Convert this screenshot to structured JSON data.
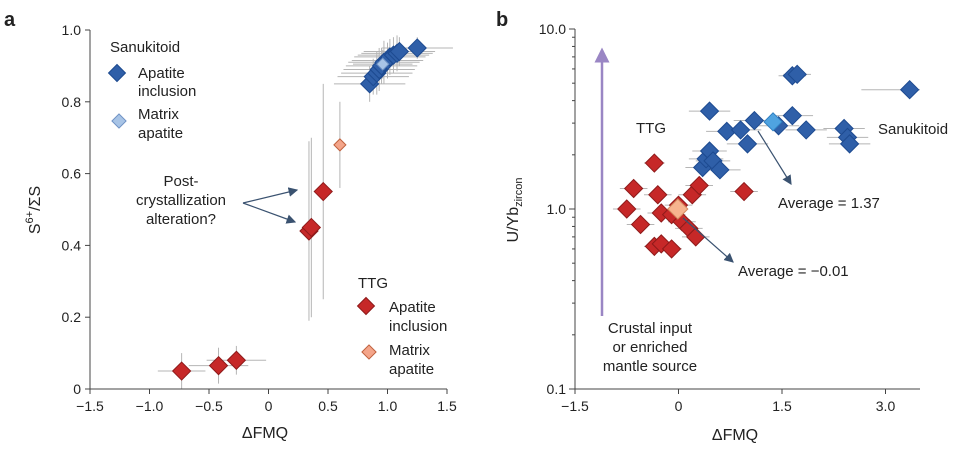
{
  "colors": {
    "sanukitoid_inclusion": "#2f5fa8",
    "sanukitoid_matrix": "#a8c4e6",
    "ttg_inclusion": "#c62828",
    "ttg_matrix": "#f4a58a",
    "arrow": "#3a5270",
    "crustal_arrow": "#9a86c4",
    "avg_sanukitoid": "#4fa3e0",
    "avg_ttg": "#f7b48f"
  },
  "panel_a": {
    "letter": "a",
    "legend": {
      "sanukitoid_title": "Sanukitoid",
      "sanukitoid_inclusion": [
        "Apatite",
        "inclusion"
      ],
      "sanukitoid_matrix": [
        "Matrix",
        "apatite"
      ],
      "ttg_title": "TTG",
      "ttg_inclusion": [
        "Apatite",
        "inclusion"
      ],
      "ttg_matrix": [
        "Matrix",
        "apatite"
      ]
    },
    "annotation": [
      "Post-",
      "crystallization",
      "alteration?"
    ]
  },
  "panel_b": {
    "letter": "b",
    "label_ttg": "TTG",
    "label_sanukitoid": "Sanukitoid",
    "avg_sanukitoid_text": "Average = 1.37",
    "avg_ttg_text": "Average = −0.01",
    "crustal_text": [
      "Crustal input",
      "or enriched",
      "mantle source"
    ]
  },
  "chart_data": [
    {
      "type": "scatter",
      "panel": "a",
      "xlabel": "ΔFMQ",
      "ylabel_main": "S",
      "ylabel_sup": "6+",
      "ylabel_tail": "/ΣS",
      "xlim": [
        -1.5,
        1.5
      ],
      "ylim": [
        0,
        1.0
      ],
      "xticks": [
        -1.5,
        -1.0,
        -0.5,
        0,
        0.5,
        1.0,
        1.5
      ],
      "xtick_labels": [
        "−1.5",
        "−1.0",
        "−0.5",
        "0",
        "0.5",
        "1.0",
        "1.5"
      ],
      "yticks": [
        0,
        0.2,
        0.4,
        0.6,
        0.8,
        1.0
      ],
      "ytick_labels": [
        "0",
        "0.2",
        "0.4",
        "0.6",
        "0.8",
        "1.0"
      ],
      "series": [
        {
          "name": "Sanukitoid apatite inclusion",
          "points": [
            {
              "x": 0.85,
              "y": 0.85,
              "xe": 0.3,
              "ye": 0.05
            },
            {
              "x": 0.88,
              "y": 0.87,
              "xe": 0.3,
              "ye": 0.05
            },
            {
              "x": 0.91,
              "y": 0.88,
              "xe": 0.3,
              "ye": 0.06
            },
            {
              "x": 0.93,
              "y": 0.89,
              "xe": 0.3,
              "ye": 0.06
            },
            {
              "x": 0.95,
              "y": 0.9,
              "xe": 0.3,
              "ye": 0.05
            },
            {
              "x": 0.97,
              "y": 0.91,
              "xe": 0.3,
              "ye": 0.06
            },
            {
              "x": 1.0,
              "y": 0.915,
              "xe": 0.3,
              "ye": 0.05
            },
            {
              "x": 1.02,
              "y": 0.925,
              "xe": 0.3,
              "ye": 0.05
            },
            {
              "x": 1.05,
              "y": 0.93,
              "xe": 0.3,
              "ye": 0.05
            },
            {
              "x": 1.08,
              "y": 0.935,
              "xe": 0.3,
              "ye": 0.05
            },
            {
              "x": 1.1,
              "y": 0.94,
              "xe": 0.3,
              "ye": 0.04
            },
            {
              "x": 1.25,
              "y": 0.95,
              "xe": 0.3,
              "ye": 0.03
            }
          ]
        },
        {
          "name": "Sanukitoid matrix apatite",
          "points": [
            {
              "x": 0.96,
              "y": 0.905,
              "xe": 0.25,
              "ye": 0.04
            }
          ]
        },
        {
          "name": "TTG apatite inclusion",
          "points": [
            {
              "x": -0.73,
              "y": 0.05,
              "xe": 0.2,
              "ye": 0.05
            },
            {
              "x": -0.42,
              "y": 0.065,
              "xe": 0.25,
              "ye": 0.05
            },
            {
              "x": -0.27,
              "y": 0.08,
              "xe": 0.25,
              "ye": 0.04
            },
            {
              "x": 0.34,
              "y": 0.44,
              "xe": 0.05,
              "ye": 0.25
            },
            {
              "x": 0.36,
              "y": 0.45,
              "xe": 0.05,
              "ye": 0.25
            },
            {
              "x": 0.46,
              "y": 0.55,
              "xe": 0.06,
              "ye": 0.3
            }
          ]
        },
        {
          "name": "TTG matrix apatite",
          "points": [
            {
              "x": 0.6,
              "y": 0.68,
              "xe": 0.02,
              "ye": 0.12
            }
          ]
        }
      ]
    },
    {
      "type": "scatter",
      "panel": "b",
      "scale_y": "log",
      "xlabel": "ΔFMQ",
      "ylabel_main": "U/Yb",
      "ylabel_sub": "zircon",
      "xlim": [
        -1.5,
        3.5
      ],
      "ylim": [
        0.1,
        10.0
      ],
      "xticks": [
        -1.5,
        0,
        1.5,
        3.0
      ],
      "xtick_labels": [
        "−1.5",
        "0",
        "1.5",
        "3.0"
      ],
      "yticks": [
        0.1,
        1.0,
        10.0
      ],
      "ytick_labels": [
        "0.1",
        "1.0",
        "10.0"
      ],
      "series": [
        {
          "name": "Sanukitoid",
          "points": [
            {
              "x": 0.35,
              "y": 1.7,
              "xe": 0.25
            },
            {
              "x": 0.4,
              "y": 1.9,
              "xe": 0.25
            },
            {
              "x": 0.45,
              "y": 2.1,
              "xe": 0.25
            },
            {
              "x": 0.5,
              "y": 1.85,
              "xe": 0.25
            },
            {
              "x": 0.6,
              "y": 1.65,
              "xe": 0.3
            },
            {
              "x": 0.45,
              "y": 3.5,
              "xe": 0.3
            },
            {
              "x": 0.7,
              "y": 2.7,
              "xe": 0.3
            },
            {
              "x": 0.9,
              "y": 2.75,
              "xe": 0.3
            },
            {
              "x": 1.0,
              "y": 2.3,
              "xe": 0.3
            },
            {
              "x": 1.1,
              "y": 3.1,
              "xe": 0.3
            },
            {
              "x": 1.45,
              "y": 2.9,
              "xe": 0.3
            },
            {
              "x": 1.65,
              "y": 3.3,
              "xe": 0.3
            },
            {
              "x": 1.85,
              "y": 2.75,
              "xe": 0.3
            },
            {
              "x": 1.65,
              "y": 5.5,
              "xe": 0.2
            },
            {
              "x": 1.72,
              "y": 5.6,
              "xe": 0.2
            },
            {
              "x": 2.4,
              "y": 2.8,
              "xe": 0.3
            },
            {
              "x": 2.45,
              "y": 2.5,
              "xe": 0.3
            },
            {
              "x": 2.48,
              "y": 2.3,
              "xe": 0.3
            },
            {
              "x": 3.35,
              "y": 4.6,
              "xe": 0.7
            }
          ]
        },
        {
          "name": "TTG",
          "points": [
            {
              "x": -0.35,
              "y": 1.8,
              "xe": 0.15
            },
            {
              "x": -0.65,
              "y": 1.3,
              "xe": 0.2
            },
            {
              "x": -0.75,
              "y": 1.0,
              "xe": 0.2
            },
            {
              "x": -0.55,
              "y": 0.82,
              "xe": 0.2
            },
            {
              "x": -0.3,
              "y": 1.2,
              "xe": 0.2
            },
            {
              "x": -0.25,
              "y": 0.95,
              "xe": 0.2
            },
            {
              "x": -0.1,
              "y": 0.93,
              "xe": 0.2
            },
            {
              "x": 0.0,
              "y": 1.05,
              "xe": 0.2
            },
            {
              "x": 0.05,
              "y": 0.85,
              "xe": 0.2
            },
            {
              "x": 0.15,
              "y": 0.78,
              "xe": 0.2
            },
            {
              "x": 0.2,
              "y": 1.2,
              "xe": 0.2
            },
            {
              "x": 0.3,
              "y": 1.35,
              "xe": 0.2
            },
            {
              "x": 0.25,
              "y": 0.7,
              "xe": 0.2
            },
            {
              "x": -0.35,
              "y": 0.62,
              "xe": 0.15
            },
            {
              "x": -0.25,
              "y": 0.64,
              "xe": 0.15
            },
            {
              "x": -0.1,
              "y": 0.6,
              "xe": 0.15
            },
            {
              "x": 0.95,
              "y": 1.25,
              "xe": 0.2
            }
          ]
        },
        {
          "name": "Average sanukitoid",
          "points": [
            {
              "x": 1.37,
              "y": 3.05
            }
          ]
        },
        {
          "name": "Average TTG",
          "points": [
            {
              "x": -0.01,
              "y": 1.0
            }
          ]
        }
      ]
    }
  ]
}
